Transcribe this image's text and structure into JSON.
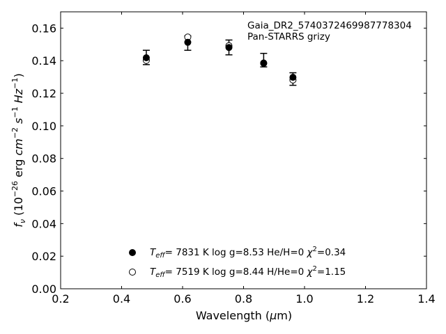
{
  "chart_data": {
    "type": "scatter",
    "title": "",
    "xlabel": "Wavelength (μm)",
    "ylabel": "f_ν (10^-26 erg cm^-2 s^-1 Hz^-1)",
    "xlim": [
      0.2,
      1.4
    ],
    "ylim": [
      0.0,
      0.17
    ],
    "x_ticks": [
      0.2,
      0.4,
      0.6,
      0.8,
      1.0,
      1.2,
      1.4
    ],
    "x_tick_labels": [
      "0.2",
      "0.4",
      "0.6",
      "0.8",
      "1.0",
      "1.2",
      "1.4"
    ],
    "y_ticks": [
      0.0,
      0.02,
      0.04,
      0.06,
      0.08,
      0.1,
      0.12,
      0.14,
      0.16
    ],
    "y_tick_labels": [
      "0.00",
      "0.02",
      "0.04",
      "0.06",
      "0.08",
      "0.10",
      "0.12",
      "0.14",
      "0.16"
    ],
    "grid": false,
    "annotation": {
      "line1": "Gaia_DR2_5740372469987778304",
      "line2": "Pan-STARRS grizy"
    },
    "observed": {
      "x": [
        0.481,
        0.617,
        0.752,
        0.866,
        0.962
      ],
      "y_upper": [
        0.1464,
        0.1552,
        0.1527,
        0.1445,
        0.1326
      ],
      "y_lower": [
        0.1376,
        0.1464,
        0.1436,
        0.1362,
        0.1249
      ]
    },
    "series": [
      {
        "marker": "filled",
        "x": [
          0.481,
          0.617,
          0.752,
          0.866,
          0.962
        ],
        "y": [
          0.1418,
          0.1513,
          0.1481,
          0.1386,
          0.1298
        ],
        "legend": {
          "teff_value": "7831 K",
          "logg": "log g=8.53",
          "composition": "He/H=0",
          "chi2_value": "=0.34"
        }
      },
      {
        "marker": "open",
        "x": [
          0.481,
          0.617,
          0.752,
          0.866,
          0.962
        ],
        "y": [
          0.1402,
          0.1545,
          0.1492,
          0.1384,
          0.1282
        ],
        "legend": {
          "teff_value": "7519 K",
          "logg": "log g=8.44",
          "composition": "H/He=0",
          "chi2_value": "=1.15"
        }
      }
    ]
  }
}
